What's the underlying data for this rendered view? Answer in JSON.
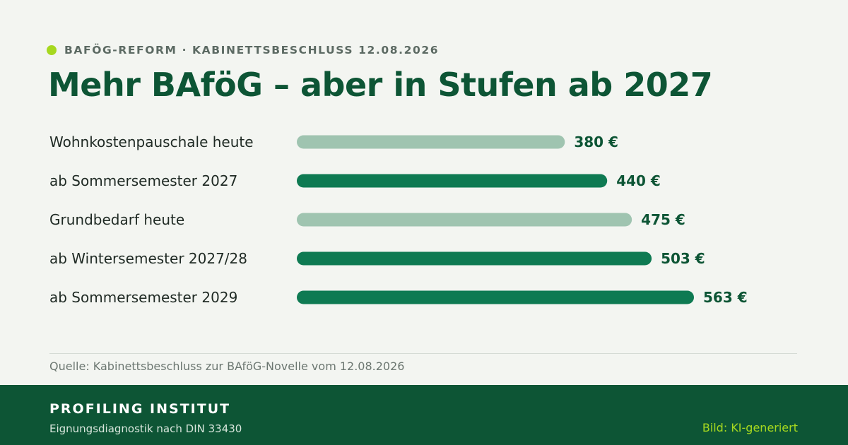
{
  "header": {
    "eyebrow": "BAFÖG-REFORM · KABINETTSBESCHLUSS 12.08.2026",
    "title": "Mehr BAföG – aber in Stufen ab 2027"
  },
  "chart_data": {
    "type": "bar",
    "orientation": "horizontal",
    "title": "Mehr BAföG – aber in Stufen ab 2027",
    "categories": [
      "Wohnkostenpauschale heute",
      "ab Sommersemester 2027",
      "Grundbedarf heute",
      "ab Wintersemester 2027/28",
      "ab Sommersemester 2029"
    ],
    "values": [
      380,
      440,
      475,
      503,
      563
    ],
    "value_labels": [
      "380 €",
      "440 €",
      "475 €",
      "503 €",
      "563 €"
    ],
    "kinds": [
      "heute",
      "neu",
      "heute",
      "neu",
      "neu"
    ],
    "xlim": [
      0,
      563
    ],
    "grid": false,
    "legend": "none"
  },
  "source": "Quelle: Kabinettsbeschluss zur BAföG-Novelle vom 12.08.2026",
  "footer": {
    "org_name": "PROFILING INSTITUT",
    "org_sub": "Eignungsdiagnostik nach DIN 33430",
    "credit": "Bild: KI-generiert"
  },
  "colors": {
    "bar_current": "#9fc4b0",
    "bar_new": "#0e7a52",
    "accent": "#a6d81f",
    "title": "#0d5535",
    "footer_bg": "#0d5535"
  },
  "icons": {
    "eyebrow_marker": "dot-icon"
  }
}
